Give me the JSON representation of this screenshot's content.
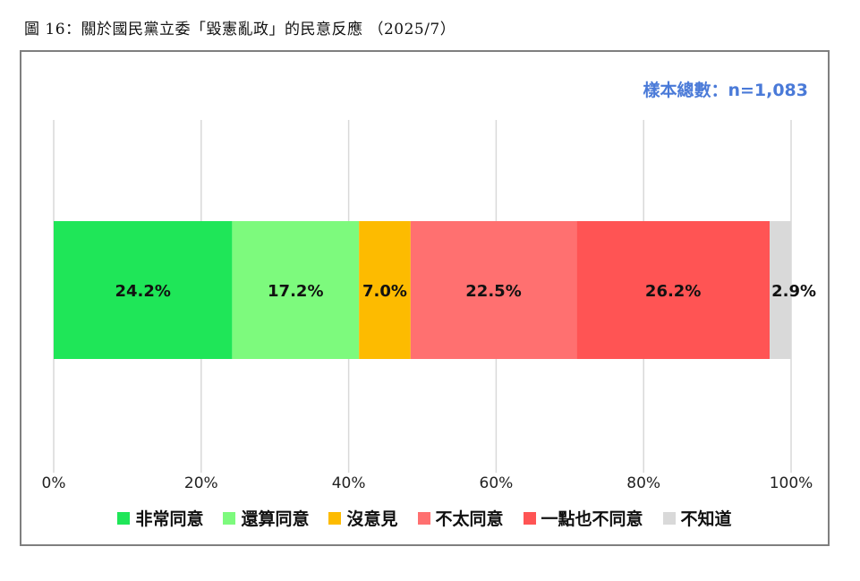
{
  "caption": "圖 16：關於國民黨立委「毀憲亂政」的民意反應 （2025/7）",
  "sample_note": "樣本總數：n=1,083",
  "chart_data": {
    "type": "bar",
    "orientation": "horizontal",
    "stacked": true,
    "title": "",
    "xlabel": "",
    "ylabel": "",
    "xlim": [
      0,
      100
    ],
    "x_ticks": [
      "0%",
      "20%",
      "40%",
      "60%",
      "80%",
      "100%"
    ],
    "grid": true,
    "legend_position": "bottom",
    "series": [
      {
        "name": "非常同意",
        "values": [
          24.2
        ],
        "label": "24.2%",
        "color": "#1fe658"
      },
      {
        "name": "還算同意",
        "values": [
          17.2
        ],
        "label": "17.2%",
        "color": "#7dfa7d"
      },
      {
        "name": "沒意見",
        "values": [
          7.0
        ],
        "label": "7.0%",
        "color": "#fdbb00"
      },
      {
        "name": "不太同意",
        "values": [
          22.5
        ],
        "label": "22.5%",
        "color": "#ff7070"
      },
      {
        "name": "一點也不同意",
        "values": [
          26.2
        ],
        "label": "26.2%",
        "color": "#ff5454"
      },
      {
        "name": "不知道",
        "values": [
          2.9
        ],
        "label": "2.9%",
        "color": "#d9d9d9"
      }
    ]
  }
}
